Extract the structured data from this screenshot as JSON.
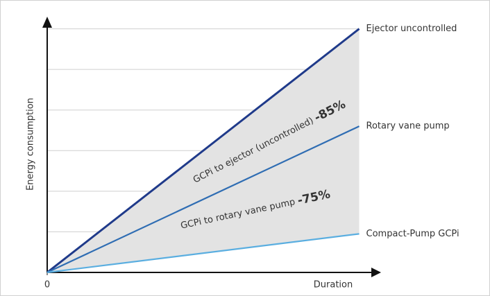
{
  "chart_data": {
    "type": "line",
    "x_label": "Duration",
    "y_label": "Energy consumption",
    "x": [
      0,
      1
    ],
    "xlim": [
      0,
      1.07
    ],
    "xticks": [
      0
    ],
    "ylim": [
      0,
      6.3
    ],
    "yticks": [
      1,
      2,
      3,
      4,
      5,
      6
    ],
    "grid": true,
    "series": [
      {
        "name": "Ejector uncontrolled",
        "color": "#1f3a8a",
        "values": [
          0,
          6
        ]
      },
      {
        "name": "Rotary vane pump",
        "color": "#2f6db3",
        "values": [
          0,
          3.6
        ]
      },
      {
        "name": "Compact-Pump GCPi",
        "color": "#5aaee0",
        "values": [
          0,
          0.95
        ]
      }
    ],
    "annotations": [
      {
        "text": "GCPi to ejector (uncontrolled)",
        "figure": "-85%"
      },
      {
        "text": "GCPi to rotary vane pump",
        "figure": "-75%"
      }
    ]
  }
}
